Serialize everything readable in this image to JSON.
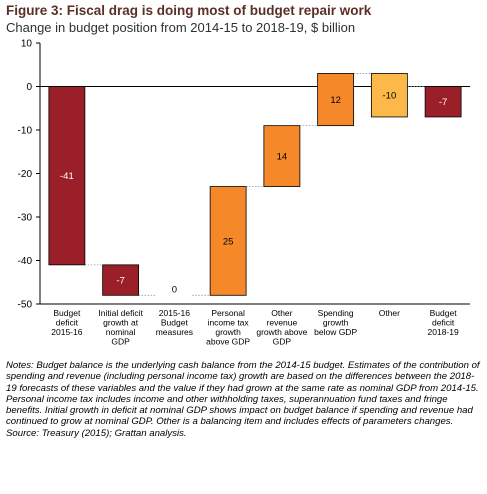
{
  "title": "Figure 3: Fiscal drag is doing most of budget repair work",
  "subtitle": "Change in budget position from 2014-15 to 2018-19, $ billion",
  "colors": {
    "dark_red": "#9b1f28",
    "orange": "#f5892a",
    "light_orange": "#fcb848",
    "text_on_dark": "#ffffff",
    "text_on_light": "#000000"
  },
  "chart_data": {
    "type": "bar",
    "subtype": "waterfall",
    "ylim": [
      -50,
      10
    ],
    "yticks": [
      10,
      0,
      -10,
      -20,
      -30,
      -40,
      -50
    ],
    "grid": false,
    "legend": "none",
    "bars": [
      {
        "label": [
          "Budget",
          "deficit",
          "2015-16"
        ],
        "start": 0,
        "end": -41,
        "value_label": "-41",
        "color": "dark_red"
      },
      {
        "label": [
          "Initial deficit",
          "growth at",
          "nominal",
          "GDP"
        ],
        "start": -41,
        "end": -48,
        "value_label": "-7",
        "color": "dark_red"
      },
      {
        "label": [
          "2015-16",
          "Budget",
          "measures"
        ],
        "start": -48,
        "end": -48,
        "value_label": "0",
        "color": "dark_red"
      },
      {
        "label": [
          "Personal",
          "income tax",
          "growth",
          "above GDP"
        ],
        "start": -48,
        "end": -23,
        "value_label": "25",
        "color": "orange"
      },
      {
        "label": [
          "Other",
          "revenue",
          "growth above",
          "GDP"
        ],
        "start": -23,
        "end": -9,
        "value_label": "14",
        "color": "orange"
      },
      {
        "label": [
          "Spending",
          "growth",
          "below GDP"
        ],
        "start": -9,
        "end": 3,
        "value_label": "12",
        "color": "orange"
      },
      {
        "label": [
          "Other"
        ],
        "start": 3,
        "end": -7,
        "value_label": "-10",
        "color": "light_orange"
      },
      {
        "label": [
          "Budget",
          "deficit",
          "2018-19"
        ],
        "start": 0,
        "end": -7,
        "value_label": "-7",
        "color": "dark_red"
      }
    ]
  },
  "notes": {
    "body": "Notes: Budget balance is the underlying cash balance from the 2014-15 budget. Estimates of the contribution of spending and revenue (including personal income tax) growth are based on the differences between the 2018-19 forecasts of these variables and the value if they had grown at the same rate as nominal GDP from 2014-15. Personal income tax includes income and other withholding taxes, superannuation fund taxes and fringe benefits. Initial growth in deficit at nominal GDP shows impact on budget balance if spending and revenue had continued to grow at nominal GDP. Other is a balancing item and includes effects of parameters changes.",
    "source": "Source: Treasury (2015); Grattan analysis."
  }
}
